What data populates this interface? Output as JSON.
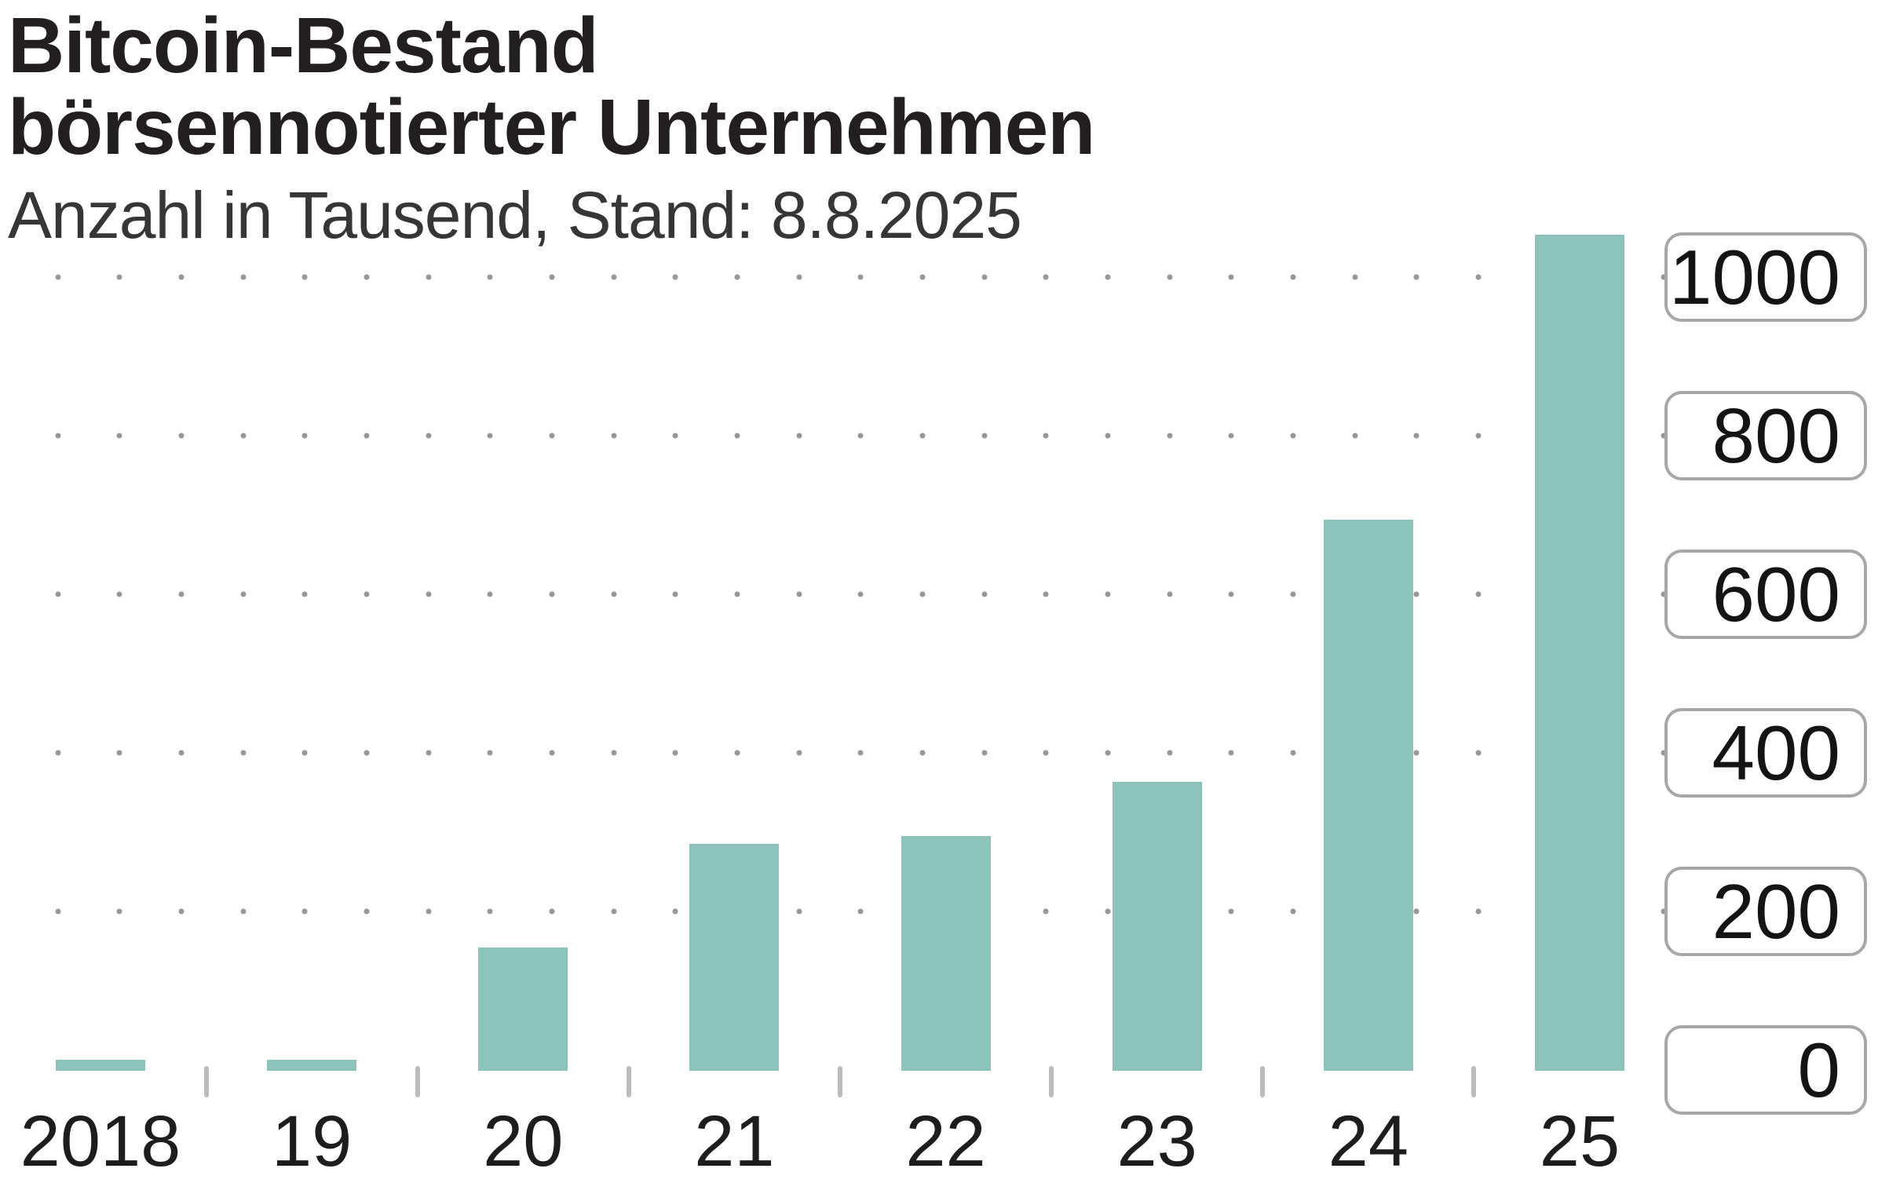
{
  "header": {
    "title_line1": "Bitcoin-Bestand",
    "title_line2": "börsennotierter Unternehmen",
    "subtitle": "Anzahl in Tausend, Stand: 8.8.2025"
  },
  "chart_data": {
    "type": "bar",
    "title": "Bitcoin-Bestand börsennotierter Unternehmen",
    "subtitle": "Anzahl in Tausend, Stand: 8.8.2025",
    "unit": "Tausend Bitcoin",
    "categories": [
      "2018",
      "19",
      "20",
      "21",
      "22",
      "23",
      "24",
      "25"
    ],
    "values": [
      14,
      14,
      155,
      286,
      296,
      364,
      695,
      1054
    ],
    "xlabel": "",
    "ylabel": "Anzahl in Tausend",
    "yticks": [
      1000,
      800,
      600,
      400,
      200,
      0
    ],
    "ylim": [
      0,
      1055
    ],
    "grid": "horizontal dotted rows at 200/400/600/800/1000, y labels in rounded boxes on right side",
    "legend": "none",
    "bar_color": "#8cc4bc",
    "grid_dot_color": "#98989a",
    "tick_color": "#bcbcbc",
    "label_box_border_color": "#a7a7a7",
    "text_color": "#231f20"
  }
}
